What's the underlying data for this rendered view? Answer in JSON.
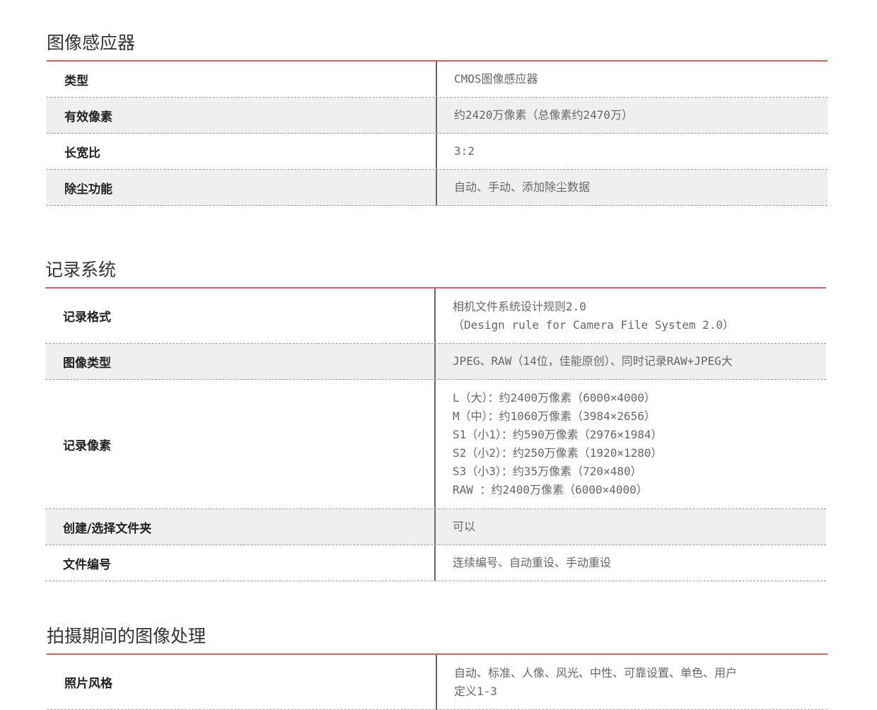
{
  "sections": [
    {
      "title": "图像感应器",
      "rows": [
        {
          "label": "类型",
          "lines": [
            "CMOS图像感应器"
          ]
        },
        {
          "label": "有效像素",
          "lines": [
            "约2420万像素（总像素约2470万）"
          ]
        },
        {
          "label": "长宽比",
          "lines": [
            "3:2"
          ]
        },
        {
          "label": "除尘功能",
          "lines": [
            "自动、手动、添加除尘数据"
          ]
        }
      ]
    },
    {
      "title": "记录系统",
      "rows": [
        {
          "label": "记录格式",
          "lines": [
            "相机文件系统设计规则2.0",
            "（Design rule for Camera File System 2.0）"
          ]
        },
        {
          "label": "图像类型",
          "lines": [
            "JPEG、RAW（14位，佳能原创）、同时记录RAW+JPEG大"
          ]
        },
        {
          "label": "记录像素",
          "lines": [
            "L（大）：约2400万像素（6000×4000）",
            "M（中）：约1060万像素（3984×2656）",
            "S1（小1）：约590万像素（2976×1984）",
            "S2（小2）：约250万像素（1920×1280）",
            "S3（小3）：约35万像素（720×480）",
            "RAW ：约2400万像素（6000×4000）"
          ]
        },
        {
          "label": "创建/选择文件夹",
          "lines": [
            "可以"
          ]
        },
        {
          "label": "文件编号",
          "lines": [
            "连续编号、自动重设、手动重设"
          ]
        }
      ]
    },
    {
      "title": "拍摄期间的图像处理",
      "rows": [
        {
          "label": "照片风格",
          "lines": [
            "自动、标准、人像、风光、中性、可靠设置、单色、用户",
            "定义1-3"
          ]
        }
      ]
    }
  ]
}
